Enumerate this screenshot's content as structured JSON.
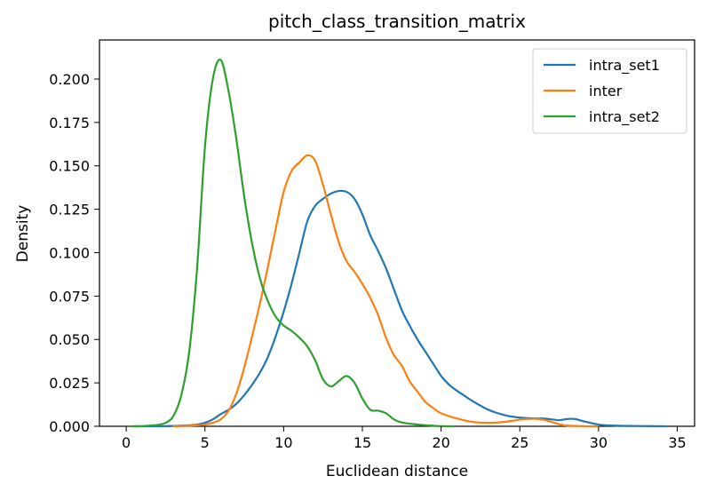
{
  "chart_data": {
    "type": "line",
    "title": "pitch_class_transition_matrix",
    "xlabel": "Euclidean distance",
    "ylabel": "Density",
    "xlim": [
      -1.7,
      36.1
    ],
    "ylim": [
      0,
      0.2225
    ],
    "xticks": [
      0,
      5,
      10,
      15,
      20,
      25,
      30,
      35
    ],
    "yticks": [
      0.0,
      0.025,
      0.05,
      0.075,
      0.1,
      0.125,
      0.15,
      0.175,
      0.2
    ],
    "ytick_labels": [
      "0.000",
      "0.025",
      "0.050",
      "0.075",
      "0.100",
      "0.125",
      "0.150",
      "0.175",
      "0.200"
    ],
    "xtick_labels": [
      "0",
      "5",
      "10",
      "15",
      "20",
      "25",
      "30",
      "35"
    ],
    "grid": false,
    "legend_position": "top-right",
    "series": [
      {
        "name": "intra_set1",
        "color": "#1f77b4",
        "x": [
          0.5,
          2,
          3,
          4,
          4.5,
          5,
          5.5,
          6,
          6.5,
          7,
          7.5,
          8,
          8.5,
          9,
          9.5,
          10,
          10.5,
          11,
          11.5,
          12,
          12.5,
          13,
          13.5,
          14,
          14.5,
          15,
          15.5,
          16,
          16.5,
          17,
          17.5,
          18,
          18.5,
          19,
          19.5,
          20,
          20.5,
          21,
          21.5,
          22,
          23,
          24,
          25,
          26,
          26.5,
          27,
          27.5,
          28,
          28.5,
          29,
          30,
          31,
          32,
          33,
          34.3
        ],
        "y": [
          0,
          0,
          0.0002,
          0.0006,
          0.001,
          0.002,
          0.004,
          0.007,
          0.0095,
          0.013,
          0.018,
          0.024,
          0.031,
          0.04,
          0.052,
          0.066,
          0.082,
          0.1,
          0.118,
          0.127,
          0.131,
          0.134,
          0.1355,
          0.135,
          0.131,
          0.122,
          0.11,
          0.101,
          0.091,
          0.079,
          0.067,
          0.058,
          0.05,
          0.043,
          0.036,
          0.029,
          0.024,
          0.0205,
          0.0175,
          0.0145,
          0.0095,
          0.0065,
          0.005,
          0.0045,
          0.0045,
          0.004,
          0.0035,
          0.0042,
          0.0042,
          0.003,
          0.001,
          0.0004,
          0.0002,
          0.0001,
          0
        ]
      },
      {
        "name": "inter",
        "color": "#ff7f0e",
        "x": [
          3,
          4,
          5,
          5.5,
          6,
          6.5,
          7,
          7.5,
          8,
          8.5,
          9,
          9.5,
          10,
          10.5,
          11,
          11.5,
          12,
          12.5,
          13,
          13.5,
          14,
          14.5,
          15,
          15.5,
          16,
          16.5,
          17,
          17.5,
          18,
          18.5,
          19,
          19.5,
          20,
          21,
          22,
          23,
          24,
          25,
          25.5,
          26,
          26.5,
          27,
          27.5,
          28,
          29,
          30
        ],
        "y": [
          0,
          0.0003,
          0.001,
          0.002,
          0.004,
          0.009,
          0.019,
          0.034,
          0.052,
          0.071,
          0.092,
          0.114,
          0.135,
          0.147,
          0.152,
          0.156,
          0.153,
          0.139,
          0.122,
          0.106,
          0.095,
          0.089,
          0.082,
          0.074,
          0.064,
          0.051,
          0.041,
          0.035,
          0.026,
          0.02,
          0.014,
          0.0105,
          0.0075,
          0.0045,
          0.0025,
          0.002,
          0.0025,
          0.0038,
          0.0042,
          0.0043,
          0.0038,
          0.0025,
          0.0012,
          0.0004,
          0.0001,
          0
        ]
      },
      {
        "name": "intra_set2",
        "color": "#2ca02c",
        "x": [
          0.3,
          1,
          2,
          2.5,
          3,
          3.5,
          4,
          4.5,
          5,
          5.5,
          6,
          6.5,
          7,
          7.5,
          8,
          8.5,
          9,
          9.5,
          10,
          10.5,
          11,
          11.5,
          12,
          12.5,
          13,
          13.5,
          14,
          14.5,
          15,
          15.5,
          16,
          16.5,
          17,
          17.5,
          18,
          18.5,
          19,
          19.5,
          20,
          20.8
        ],
        "y": [
          0,
          0.0001,
          0.0008,
          0.002,
          0.006,
          0.018,
          0.043,
          0.091,
          0.161,
          0.2,
          0.211,
          0.193,
          0.165,
          0.132,
          0.105,
          0.085,
          0.072,
          0.063,
          0.058,
          0.055,
          0.051,
          0.046,
          0.038,
          0.027,
          0.023,
          0.026,
          0.029,
          0.025,
          0.016,
          0.0095,
          0.009,
          0.0075,
          0.004,
          0.0022,
          0.0015,
          0.001,
          0.0006,
          0.0003,
          0.0001,
          0
        ]
      }
    ]
  }
}
